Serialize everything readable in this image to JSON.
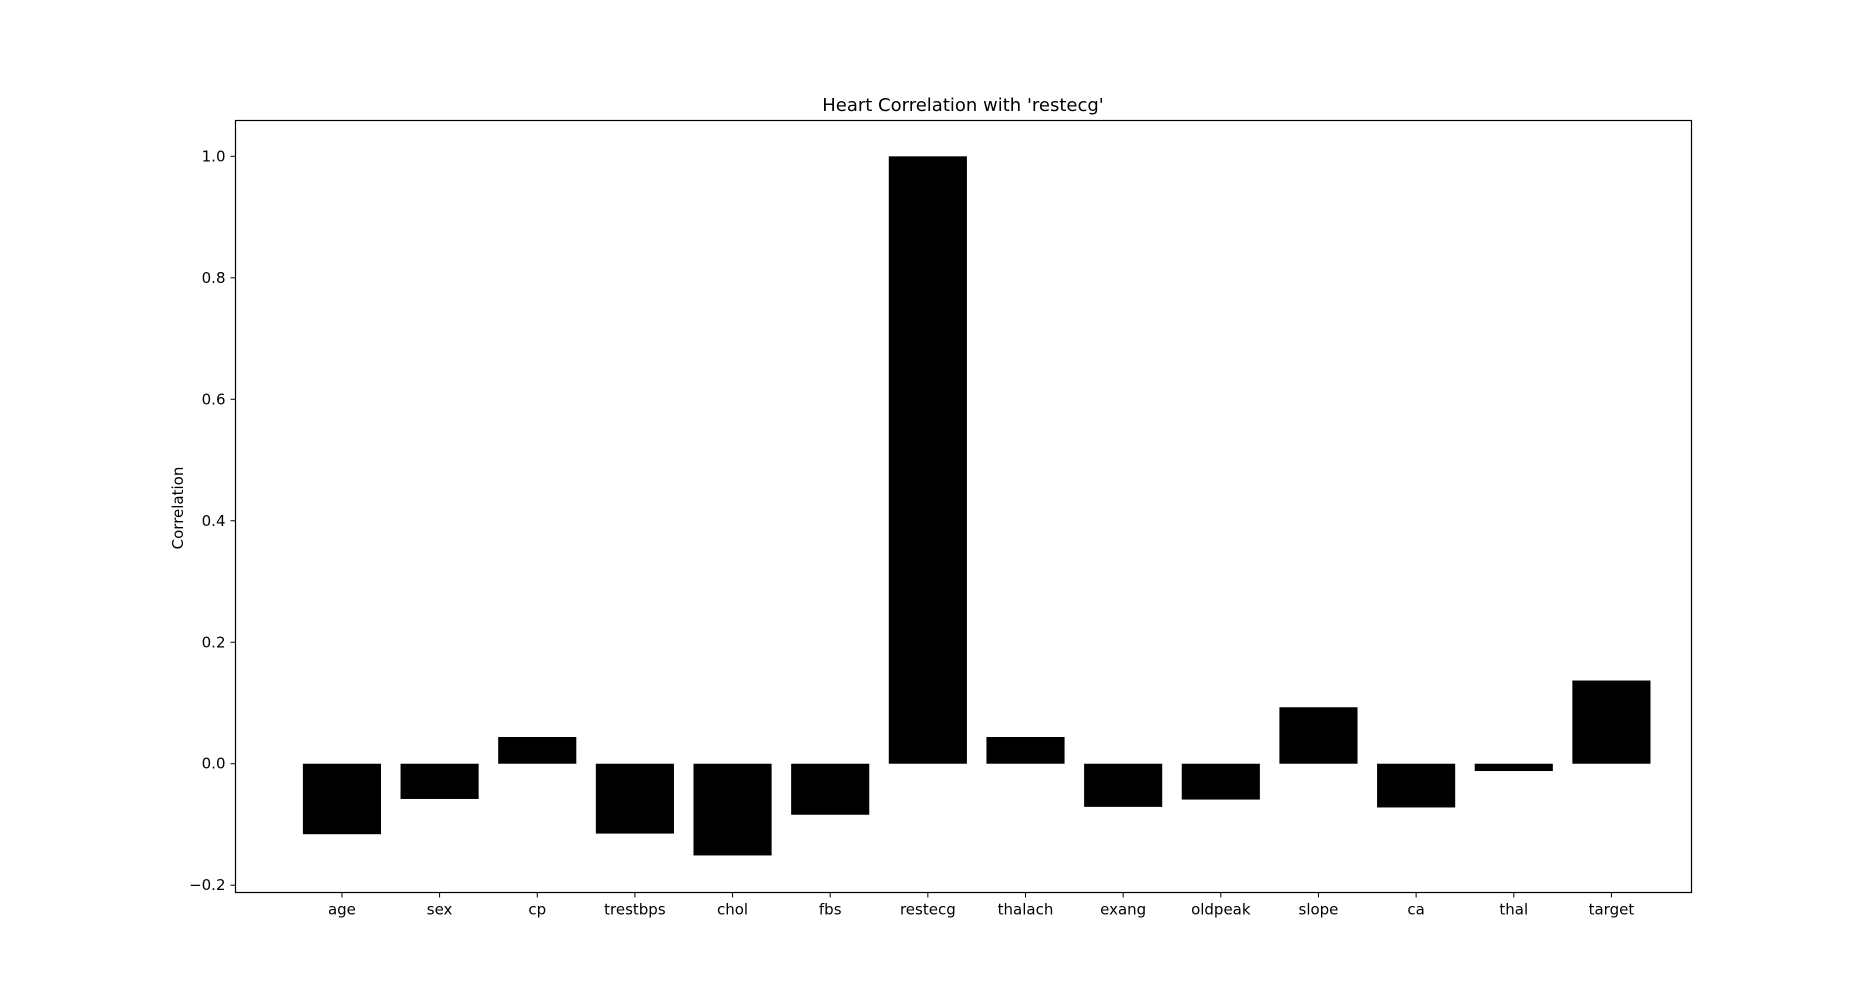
{
  "chart_data": {
    "type": "bar",
    "title": "Heart Correlation with 'restecg'",
    "xlabel": "",
    "ylabel": "Correlation",
    "categories": [
      "age",
      "sex",
      "cp",
      "trestbps",
      "chol",
      "fbs",
      "restecg",
      "thalach",
      "exang",
      "oldpeak",
      "slope",
      "ca",
      "thal",
      "target"
    ],
    "values": [
      -0.116,
      -0.058,
      0.044,
      -0.115,
      -0.151,
      -0.084,
      1.0,
      0.044,
      -0.071,
      -0.059,
      0.093,
      -0.072,
      -0.012,
      0.137
    ],
    "ylim": [
      -0.212,
      1.059
    ],
    "yticks": [
      -0.2,
      0.0,
      0.2,
      0.4,
      0.6,
      0.8,
      1.0
    ],
    "ytick_labels": [
      "−0.2",
      "0.0",
      "0.2",
      "0.4",
      "0.6",
      "0.8",
      "1.0"
    ],
    "bar_color": "#000000",
    "grid": false,
    "legend": "none"
  }
}
